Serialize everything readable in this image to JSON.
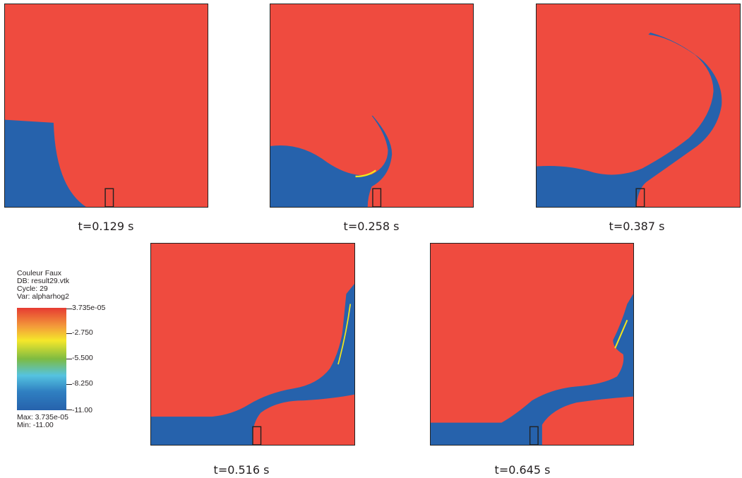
{
  "panels": [
    {
      "caption": "t=0.129 s"
    },
    {
      "caption": "t=0.258 s"
    },
    {
      "caption": "t=0.387 s"
    },
    {
      "caption": "t=0.516 s"
    },
    {
      "caption": "t=0.645 s"
    }
  ],
  "legend": {
    "title": "Couleur Faux",
    "db": "DB: result29.vtk",
    "cycle": "Cycle: 29",
    "var": "Var: alpharhog2",
    "ticks": [
      "3.735e-05",
      "-2.750",
      "-5.500",
      "-8.250",
      "-11.00"
    ],
    "max": "Max:  3.735e-05",
    "min": "Min: -11.00"
  },
  "colors": {
    "air": "#ef4b3f",
    "water": "#2662ac",
    "interface": "#f2e41c"
  }
}
